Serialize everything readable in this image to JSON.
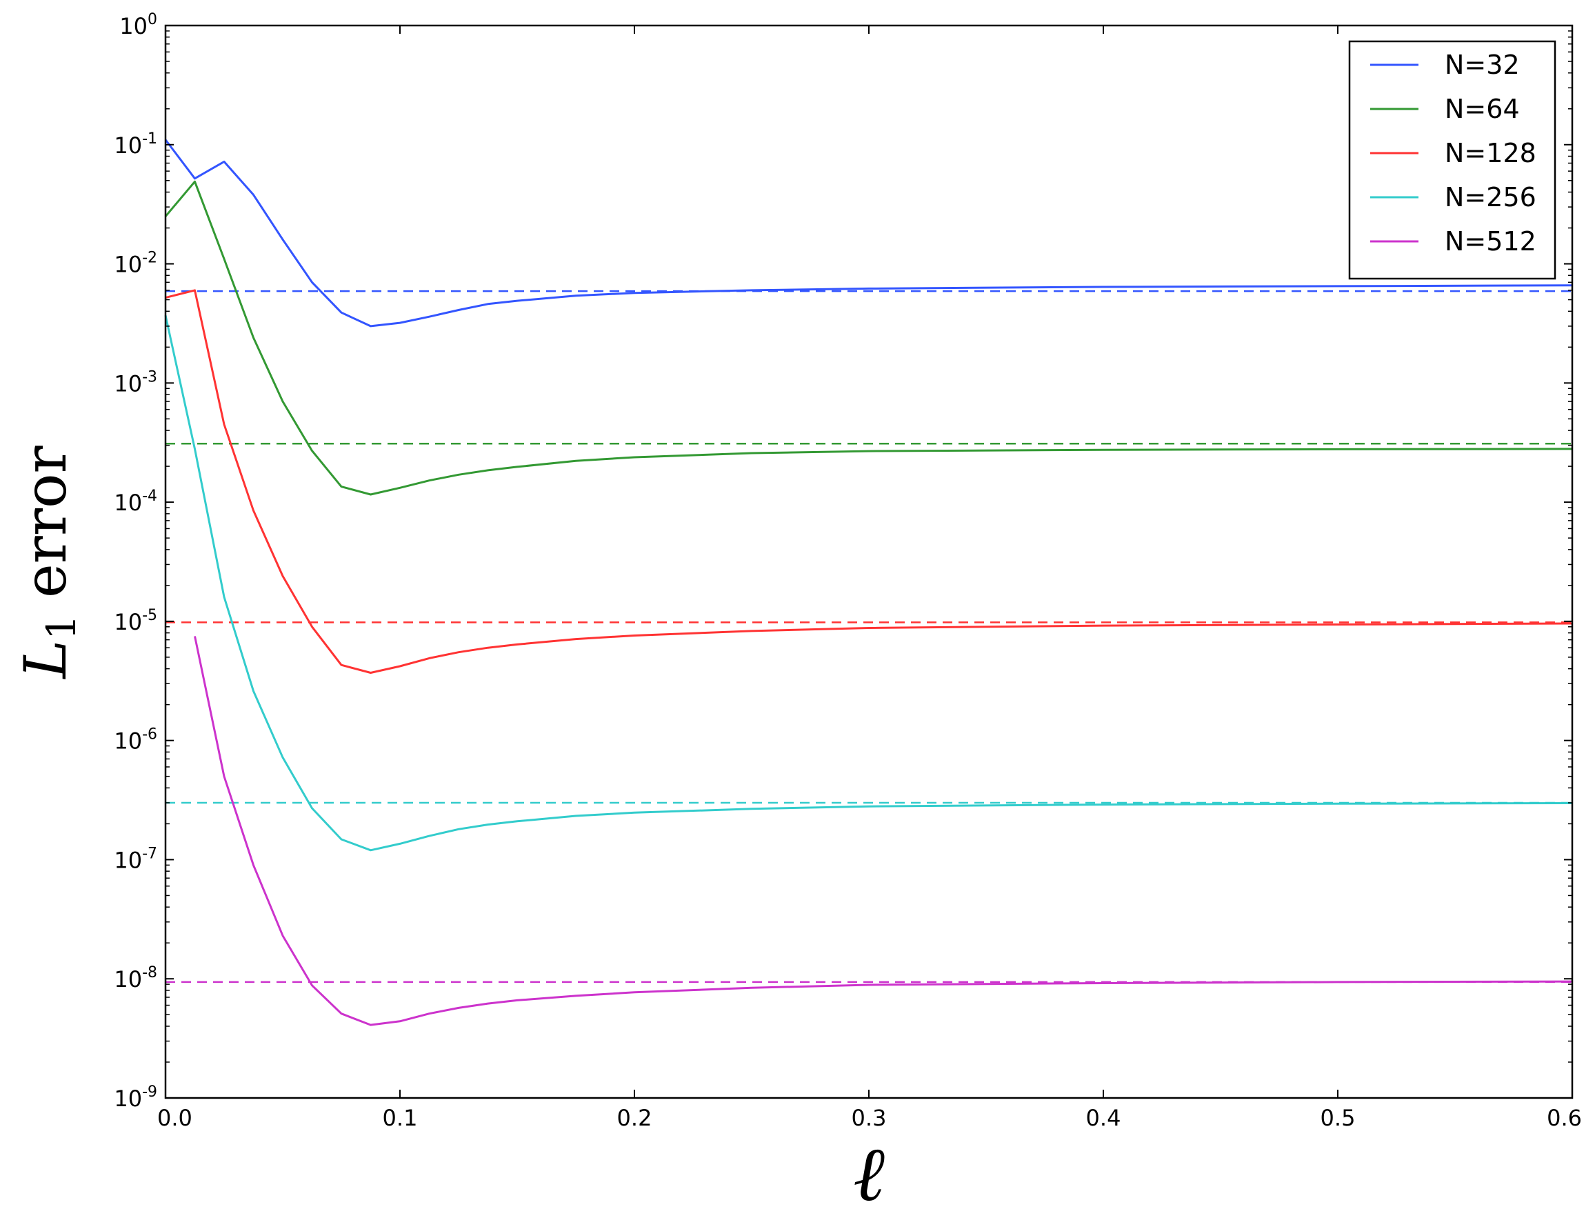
{
  "chart_data": {
    "type": "line",
    "xlabel": "ℓ",
    "ylabel": {
      "symbol": "L",
      "subscript": "1",
      "text": "error"
    },
    "xlim": [
      0.0,
      0.6
    ],
    "ylim": [
      1e-09,
      1
    ],
    "yscale": "log",
    "grid": false,
    "legend_position": "top-right",
    "x_ticks": [
      "0.0",
      "0.1",
      "0.2",
      "0.3",
      "0.4",
      "0.5",
      "0.6"
    ],
    "y_ticks": [
      {
        "base": "10",
        "exp": "0"
      },
      {
        "base": "10",
        "exp": "-1"
      },
      {
        "base": "10",
        "exp": "-2"
      },
      {
        "base": "10",
        "exp": "-3"
      },
      {
        "base": "10",
        "exp": "-4"
      },
      {
        "base": "10",
        "exp": "-5"
      },
      {
        "base": "10",
        "exp": "-6"
      },
      {
        "base": "10",
        "exp": "-7"
      },
      {
        "base": "10",
        "exp": "-8"
      },
      {
        "base": "10",
        "exp": "-9"
      }
    ],
    "series": [
      {
        "name": "N=32",
        "color": "#3355ff",
        "x": [
          0.0,
          0.0125,
          0.025,
          0.0375,
          0.05,
          0.0625,
          0.075,
          0.0875,
          0.1,
          0.1125,
          0.125,
          0.1375,
          0.15,
          0.175,
          0.2,
          0.25,
          0.3,
          0.4,
          0.5,
          0.6
        ],
        "y": [
          0.11,
          0.052,
          0.072,
          0.038,
          0.016,
          0.007,
          0.0039,
          0.003,
          0.0032,
          0.0036,
          0.0041,
          0.0046,
          0.0049,
          0.0054,
          0.0057,
          0.006,
          0.0062,
          0.0064,
          0.0065,
          0.0066
        ],
        "reference": 0.0059
      },
      {
        "name": "N=64",
        "color": "#339933",
        "x": [
          0.0,
          0.0125,
          0.025,
          0.0375,
          0.05,
          0.0625,
          0.075,
          0.0875,
          0.1,
          0.1125,
          0.125,
          0.1375,
          0.15,
          0.175,
          0.2,
          0.25,
          0.3,
          0.4,
          0.5,
          0.6
        ],
        "y": [
          0.025,
          0.049,
          0.011,
          0.0024,
          0.0007,
          0.00027,
          0.000135,
          0.000116,
          0.000132,
          0.000152,
          0.00017,
          0.000185,
          0.000198,
          0.000222,
          0.000238,
          0.000258,
          0.000268,
          0.000275,
          0.000278,
          0.00028
        ],
        "reference": 0.00031
      },
      {
        "name": "N=128",
        "color": "#ff3333",
        "x": [
          0.0,
          0.0125,
          0.025,
          0.0375,
          0.05,
          0.0625,
          0.075,
          0.0875,
          0.1,
          0.1125,
          0.125,
          0.1375,
          0.15,
          0.175,
          0.2,
          0.25,
          0.3,
          0.4,
          0.5,
          0.6
        ],
        "y": [
          0.0052,
          0.006,
          0.00045,
          8.5e-05,
          2.4e-05,
          9e-06,
          4.3e-06,
          3.7e-06,
          4.2e-06,
          4.9e-06,
          5.5e-06,
          6e-06,
          6.4e-06,
          7.1e-06,
          7.6e-06,
          8.3e-06,
          8.8e-06,
          9.2e-06,
          9.4e-06,
          9.6e-06
        ],
        "reference": 9.8e-06
      },
      {
        "name": "N=256",
        "color": "#33cccc",
        "x": [
          0.0,
          0.0125,
          0.025,
          0.0375,
          0.05,
          0.0625,
          0.075,
          0.0875,
          0.1,
          0.1125,
          0.125,
          0.1375,
          0.15,
          0.175,
          0.2,
          0.25,
          0.3,
          0.4,
          0.5,
          0.6
        ],
        "y": [
          0.0037,
          0.00028,
          1.6e-05,
          2.6e-06,
          7.2e-07,
          2.7e-07,
          1.48e-07,
          1.2e-07,
          1.36e-07,
          1.58e-07,
          1.8e-07,
          1.97e-07,
          2.1e-07,
          2.33e-07,
          2.48e-07,
          2.67e-07,
          2.8e-07,
          2.9e-07,
          2.95e-07,
          2.98e-07
        ],
        "reference": 3e-07
      },
      {
        "name": "N=512",
        "color": "#cc33cc",
        "x": [
          0.0125,
          0.025,
          0.0375,
          0.05,
          0.0625,
          0.075,
          0.0875,
          0.1,
          0.1125,
          0.125,
          0.1375,
          0.15,
          0.175,
          0.2,
          0.25,
          0.3,
          0.4,
          0.5,
          0.6
        ],
        "y": [
          7.5e-06,
          5e-07,
          9e-08,
          2.3e-08,
          8.8e-09,
          5.1e-09,
          4.1e-09,
          4.4e-09,
          5.1e-09,
          5.7e-09,
          6.2e-09,
          6.6e-09,
          7.2e-09,
          7.7e-09,
          8.4e-09,
          8.9e-09,
          9.2e-09,
          9.4e-09,
          9.5e-09
        ],
        "reference": 9.4e-09
      }
    ]
  }
}
